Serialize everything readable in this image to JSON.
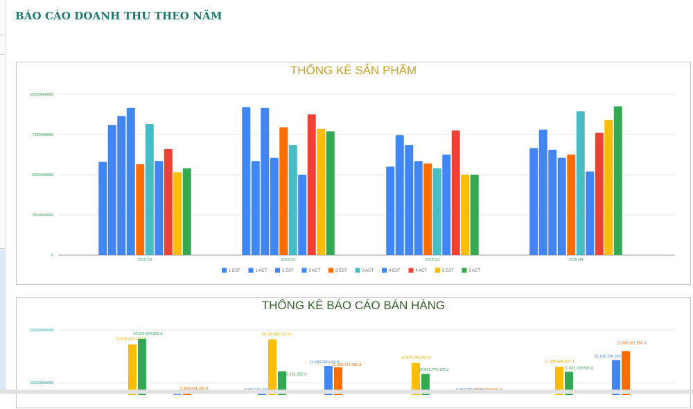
{
  "page": {
    "title": "BÁO CÁO DOANH THU THEO NĂM"
  },
  "colors": {
    "title": "#1f7a6b",
    "chart1_title": "#c8a22a",
    "chart2_title": "#355e2b",
    "axis_label_chart1": "#2e9e4f",
    "axis_label_chart2": "#26a5b5",
    "blue": "#4285f4",
    "orange": "#ff6d01",
    "teal": "#46bdc6",
    "red": "#ea4335",
    "yellow": "#fbbc04",
    "green": "#34a853"
  },
  "chart_data": [
    {
      "type": "bar",
      "title": "THỐNG KÊ SẢN PHẨM",
      "xlabel": "",
      "ylabel": "",
      "ylim": [
        0,
        10000000000
      ],
      "yticks": [
        "0",
        "2500000000",
        "5000000000",
        "7500000000",
        "10000000000"
      ],
      "grid": true,
      "legend_position": "bottom",
      "categories": [
        "2019 Q1",
        "2019 Q2",
        "2019 Q3",
        "2019 Q4"
      ],
      "series": [
        {
          "name": "1 EST",
          "color": "#4285f4",
          "values": [
            5800000000,
            9200000000,
            5500000000,
            6650000000
          ]
        },
        {
          "name": "1 ACT",
          "color": "#4285f4",
          "values": [
            8100000000,
            5850000000,
            7450000000,
            7800000000
          ]
        },
        {
          "name": "2 EST",
          "color": "#4285f4",
          "values": [
            8650000000,
            9150000000,
            6850000000,
            6550000000
          ]
        },
        {
          "name": "2 ACT",
          "color": "#4285f4",
          "values": [
            9150000000,
            6050000000,
            5850000000,
            6050000000
          ]
        },
        {
          "name": "3 EST",
          "color": "#ff6d01",
          "values": [
            5650000000,
            7950000000,
            5700000000,
            6250000000
          ]
        },
        {
          "name": "3 ACT",
          "color": "#46bdc6",
          "values": [
            8150000000,
            6850000000,
            5400000000,
            8950000000
          ]
        },
        {
          "name": "4 EST",
          "color": "#4285f4",
          "values": [
            5850000000,
            5000000000,
            6250000000,
            5200000000
          ]
        },
        {
          "name": "4 ACT",
          "color": "#ea4335",
          "values": [
            6600000000,
            8750000000,
            7750000000,
            7600000000
          ]
        },
        {
          "name": "5 EST",
          "color": "#fbbc04",
          "values": [
            5150000000,
            7850000000,
            5000000000,
            8400000000
          ]
        },
        {
          "name": "5 ACT",
          "color": "#34a853",
          "values": [
            5400000000,
            7700000000,
            5000000000,
            9250000000
          ]
        }
      ]
    },
    {
      "type": "bar",
      "title": "THỐNG KÊ BÁO CÁO BÁN HÀNG",
      "xlabel": "",
      "ylabel": "",
      "ylim_visible": [
        10000000000,
        15000000000
      ],
      "yticks": [
        "10000000000",
        "15000000000"
      ],
      "grid": true,
      "note": "Chart is cropped at the bottom; only bars/labels above ~9.7 billion are visible.",
      "bars": [
        {
          "group": 1,
          "color": "#fbbc04",
          "value": 13638367240,
          "label": "13.638.367.240 đ"
        },
        {
          "group": 1,
          "color": "#34a853",
          "value": 14150974860,
          "label": "14.150.974.860 đ"
        },
        {
          "group": 2,
          "color": "#4285f4",
          "value": 8902400000,
          "label": "8.902.400.000 đ"
        },
        {
          "group": 2,
          "color": "#ff6d01",
          "value": 9105094310,
          "label": "9.105.094.310 đ"
        },
        {
          "group": 3,
          "color": "#4285f4",
          "value": 9248157400,
          "label": "9.248.157.400 đ"
        },
        {
          "group": 3,
          "color": "#fbbc04",
          "value": 14115401210,
          "label": "14.115.401.210 đ"
        },
        {
          "group": 3,
          "color": "#34a853",
          "value": 11089161960,
          "label": "11.089.161.960 đ"
        },
        {
          "group": 4,
          "color": "#4285f4",
          "value": 11580000000,
          "label": "11.580.000.000 đ"
        },
        {
          "group": 4,
          "color": "#ff6d01",
          "value": 11460714480,
          "label": "11.460.714.480 đ"
        },
        {
          "group": 5,
          "color": "#fbbc04",
          "value": 11870294060,
          "label": "11.870.294.060 đ"
        },
        {
          "group": 5,
          "color": "#34a853",
          "value": 10842774150,
          "label": "10.842.774.150 đ"
        },
        {
          "group": 6,
          "color": "#4285f4",
          "value": 8740000000,
          "label": "8.740.000.000 đ"
        },
        {
          "group": 6,
          "color": "#ff6d01",
          "value": 8745000000,
          "label": "8.745.000.000 đ"
        },
        {
          "group": 7,
          "color": "#fbbc04",
          "value": 11509426830,
          "label": "11.509.426.830 đ"
        },
        {
          "group": 7,
          "color": "#34a853",
          "value": 11032739920,
          "label": "11.032.739.920 đ"
        },
        {
          "group": 8,
          "color": "#4285f4",
          "value": 12145736350,
          "label": "12.145.736.350 đ"
        },
        {
          "group": 8,
          "color": "#ff6d01",
          "value": 13000991550,
          "label": "13.000.991.550 đ"
        }
      ]
    }
  ]
}
